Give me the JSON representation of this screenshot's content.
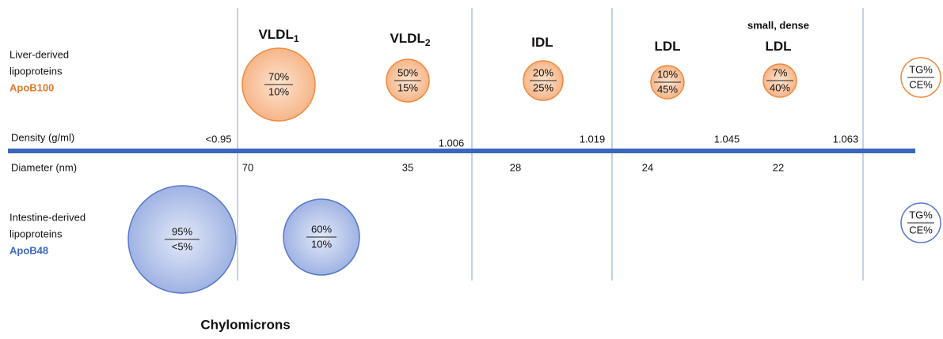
{
  "headers": [
    {
      "text": "VLDL",
      "sub": "1"
    },
    {
      "text": "VLDL",
      "sub": "2"
    },
    {
      "text": "IDL"
    },
    {
      "text": "LDL"
    },
    {
      "note": "small, dense",
      "text": "LDL"
    }
  ],
  "liver": {
    "label": [
      "Liver-derived",
      "lipoproteins"
    ],
    "apo": "ApoB100",
    "particles": [
      {
        "tg": "70%",
        "ce": "10%"
      },
      {
        "tg": "50%",
        "ce": "15%"
      },
      {
        "tg": "20%",
        "ce": "25%"
      },
      {
        "tg": "10%",
        "ce": "45%"
      },
      {
        "tg": "7%",
        "ce": "40%"
      }
    ],
    "key": {
      "tg": "TG%",
      "ce": "CE%"
    }
  },
  "intestine": {
    "label": [
      "Intestine-derived",
      "lipoproteins"
    ],
    "apo": "ApoB48",
    "particles": [
      {
        "tg": "95%",
        "ce": "<5%"
      },
      {
        "tg": "60%",
        "ce": "10%"
      }
    ],
    "key": {
      "tg": "TG%",
      "ce": "CE%"
    },
    "name": "Chylomicrons"
  },
  "density": {
    "label": "Density (g/ml)",
    "values": [
      "<0.95",
      "1.006",
      "1.019",
      "1.045",
      "1.063"
    ]
  },
  "diameter": {
    "label": "Diameter (nm)",
    "values": [
      "70",
      "35",
      "28",
      "24",
      "22"
    ]
  }
}
